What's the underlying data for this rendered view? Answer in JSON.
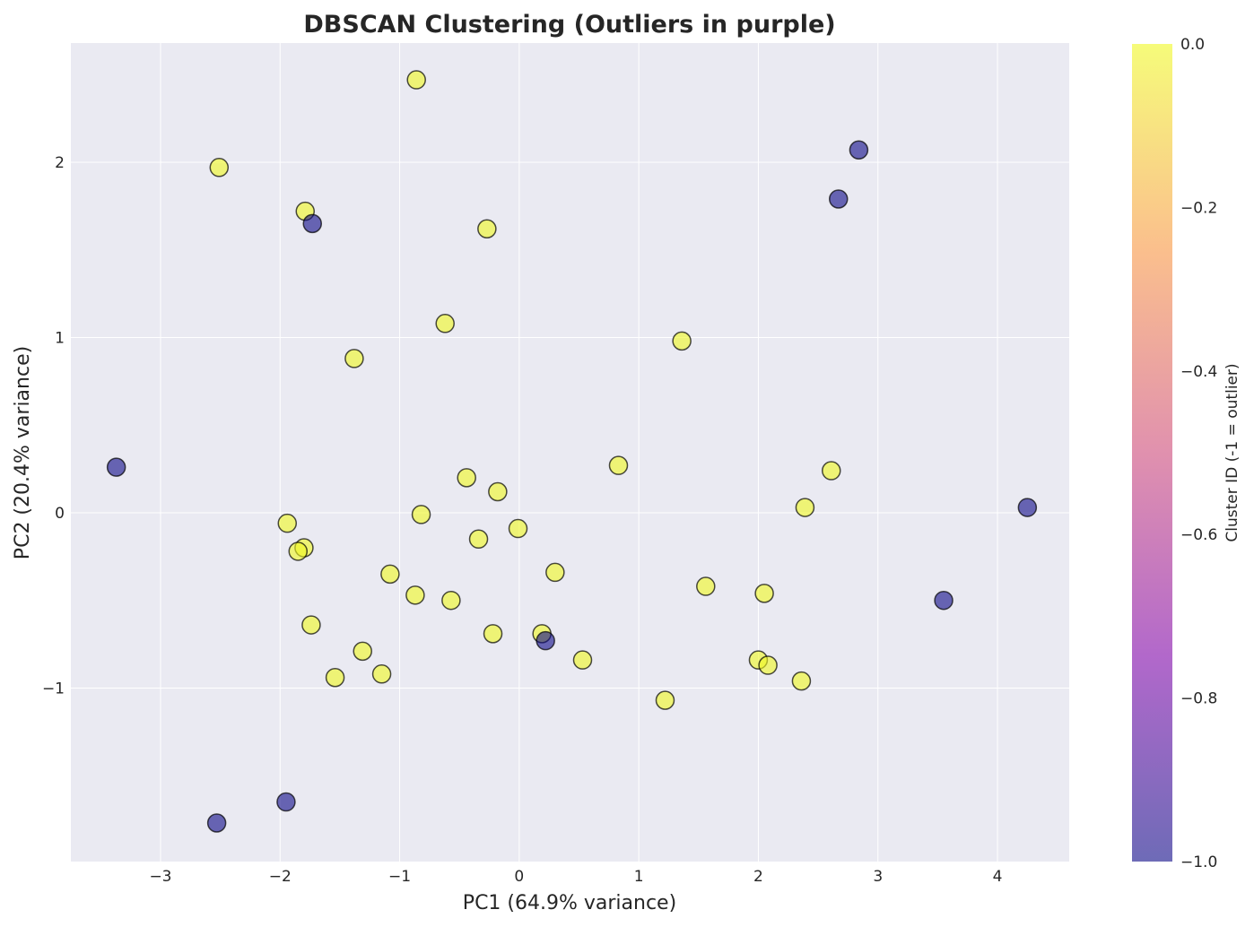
{
  "chart_data": {
    "type": "scatter",
    "title": "DBSCAN Clustering (Outliers in purple)",
    "xlabel": "PC1 (64.9% variance)",
    "ylabel": "PC2 (20.4% variance)",
    "xlim": [
      -3.75,
      4.6
    ],
    "ylim": [
      -1.99,
      2.68
    ],
    "xticks": [
      -3,
      -2,
      -1,
      0,
      1,
      2,
      3,
      4
    ],
    "yticks": [
      -1,
      0,
      1,
      2
    ],
    "grid": true,
    "colorbar": {
      "label": "Cluster ID (-1 = outlier)",
      "range": [
        -1.0,
        0.0
      ],
      "ticks": [
        0.0,
        -0.2,
        -0.4,
        -0.6,
        -0.8,
        -1.0
      ],
      "tick_labels": [
        "0.0",
        "−0.2",
        "−0.4",
        "−0.6",
        "−0.8",
        "−1.0"
      ],
      "colormap": [
        "#0d0887",
        "#7e03a8",
        "#cc4778",
        "#f89540",
        "#f0f921"
      ]
    },
    "colors": {
      "cluster_0": "#f0f921",
      "outlier": "#0d0887",
      "background": "#eaeaf2"
    },
    "points": [
      {
        "x": -0.86,
        "y": 2.47,
        "cluster": 0
      },
      {
        "x": -2.51,
        "y": 1.97,
        "cluster": 0
      },
      {
        "x": -1.79,
        "y": 1.72,
        "cluster": 0
      },
      {
        "x": -0.27,
        "y": 1.62,
        "cluster": 0
      },
      {
        "x": -0.62,
        "y": 1.08,
        "cluster": 0
      },
      {
        "x": -1.38,
        "y": 0.88,
        "cluster": 0
      },
      {
        "x": 1.36,
        "y": 0.98,
        "cluster": 0
      },
      {
        "x": 0.83,
        "y": 0.27,
        "cluster": 0
      },
      {
        "x": 2.61,
        "y": 0.24,
        "cluster": 0
      },
      {
        "x": 2.39,
        "y": 0.03,
        "cluster": 0
      },
      {
        "x": -0.44,
        "y": 0.2,
        "cluster": 0
      },
      {
        "x": -0.18,
        "y": 0.12,
        "cluster": 0
      },
      {
        "x": -0.82,
        "y": -0.01,
        "cluster": 0
      },
      {
        "x": -1.94,
        "y": -0.06,
        "cluster": 0
      },
      {
        "x": -1.8,
        "y": -0.2,
        "cluster": 0
      },
      {
        "x": -1.85,
        "y": -0.22,
        "cluster": 0
      },
      {
        "x": -0.34,
        "y": -0.15,
        "cluster": 0
      },
      {
        "x": -0.01,
        "y": -0.09,
        "cluster": 0
      },
      {
        "x": -1.08,
        "y": -0.35,
        "cluster": 0
      },
      {
        "x": 0.3,
        "y": -0.34,
        "cluster": 0
      },
      {
        "x": -0.87,
        "y": -0.47,
        "cluster": 0
      },
      {
        "x": -0.57,
        "y": -0.5,
        "cluster": 0
      },
      {
        "x": 1.56,
        "y": -0.42,
        "cluster": 0
      },
      {
        "x": 2.05,
        "y": -0.46,
        "cluster": 0
      },
      {
        "x": -1.74,
        "y": -0.64,
        "cluster": 0
      },
      {
        "x": -0.22,
        "y": -0.69,
        "cluster": 0
      },
      {
        "x": 0.19,
        "y": -0.69,
        "cluster": 0
      },
      {
        "x": -1.31,
        "y": -0.79,
        "cluster": 0
      },
      {
        "x": 0.53,
        "y": -0.84,
        "cluster": 0
      },
      {
        "x": 2.0,
        "y": -0.84,
        "cluster": 0
      },
      {
        "x": 2.08,
        "y": -0.87,
        "cluster": 0
      },
      {
        "x": -1.54,
        "y": -0.94,
        "cluster": 0
      },
      {
        "x": -1.15,
        "y": -0.92,
        "cluster": 0
      },
      {
        "x": 2.36,
        "y": -0.96,
        "cluster": 0
      },
      {
        "x": 1.22,
        "y": -1.07,
        "cluster": 0
      },
      {
        "x": 2.84,
        "y": 2.07,
        "cluster": -1
      },
      {
        "x": 2.67,
        "y": 1.79,
        "cluster": -1
      },
      {
        "x": -1.73,
        "y": 1.65,
        "cluster": -1
      },
      {
        "x": -3.37,
        "y": 0.26,
        "cluster": -1
      },
      {
        "x": 4.25,
        "y": 0.03,
        "cluster": -1
      },
      {
        "x": 3.55,
        "y": -0.5,
        "cluster": -1
      },
      {
        "x": 0.22,
        "y": -0.73,
        "cluster": -1
      },
      {
        "x": -1.95,
        "y": -1.65,
        "cluster": -1
      },
      {
        "x": -2.53,
        "y": -1.77,
        "cluster": -1
      }
    ]
  }
}
